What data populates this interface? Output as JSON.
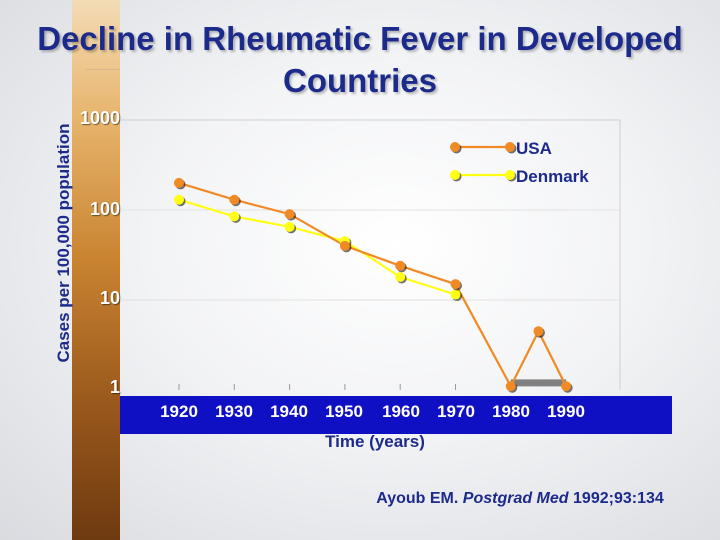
{
  "chart_data": {
    "type": "line",
    "title": "Decline in Rheumatic Fever in Developed Countries",
    "xlabel": "Time (years)",
    "ylabel": "Cases per 100,000 population",
    "yscale": "log",
    "ylim": [
      1,
      1000
    ],
    "xlim": [
      1910,
      1995
    ],
    "x_ticks": [
      "1920",
      "1930",
      "1940",
      "1950",
      "1960",
      "1970",
      "1980",
      "1990"
    ],
    "y_ticks": [
      "1000",
      "100",
      "10",
      "1"
    ],
    "grid": false,
    "legend": "top-right",
    "series": [
      {
        "name": "USA",
        "color": "#f08a24",
        "x": [
          1920,
          1930,
          1940,
          1950,
          1960,
          1970,
          1980,
          1985,
          1990
        ],
        "y": [
          200,
          130,
          90,
          40,
          24,
          15,
          1.1,
          4.5,
          1.1
        ]
      },
      {
        "name": "Denmark",
        "color": "#ffff14",
        "x": [
          1920,
          1930,
          1940,
          1950,
          1960,
          1970
        ],
        "y": [
          130,
          85,
          65,
          45,
          18,
          11.5
        ]
      }
    ],
    "annotations": [
      {
        "kind": "gray-bar",
        "x": [
          1980,
          1990
        ],
        "y": 1.2,
        "color": "#808080"
      }
    ]
  },
  "citation": {
    "author": "Ayoub EM.",
    "journal": "Postgrad Med",
    "details": "1992;93:134"
  }
}
